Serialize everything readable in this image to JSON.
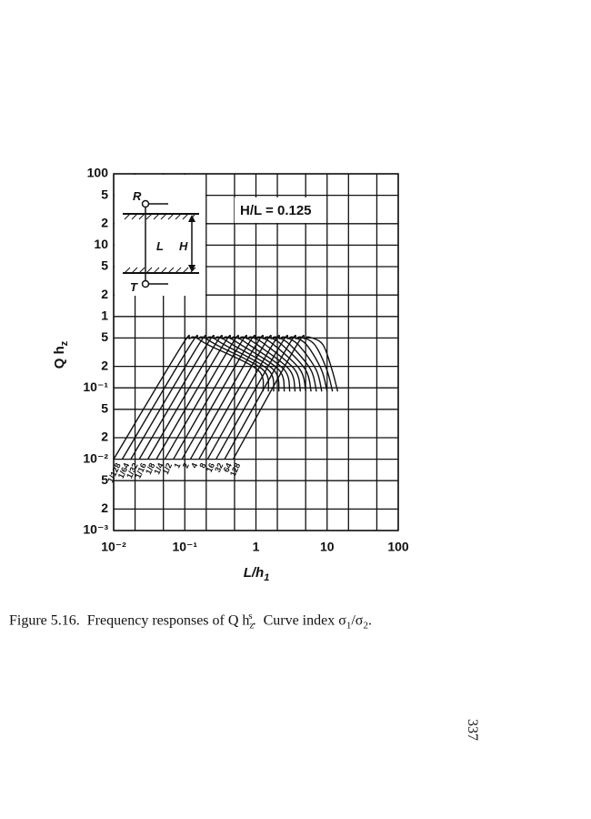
{
  "chart_data": {
    "type": "line",
    "x_label": {
      "main": "L/h",
      "sub": "1"
    },
    "y_label": {
      "main": "Q h",
      "sub": "z"
    },
    "annotation": "H/L = 0.125",
    "inset": {
      "top": "R",
      "bottom": "T",
      "left": "L",
      "right": "H"
    },
    "xlog": true,
    "ylog": true,
    "grid": true,
    "line_color": "#111111",
    "xlim": [
      0.01,
      100
    ],
    "ylim": [
      0.001,
      100
    ],
    "xticks": [
      {
        "value": 0.01,
        "label": "10⁻²"
      },
      {
        "value": 0.1,
        "label": "10⁻¹"
      },
      1,
      10,
      100
    ],
    "xgrid": [
      0.02,
      0.05,
      0.2,
      0.5,
      2,
      5,
      20,
      50
    ],
    "yticks": [
      100,
      {
        "value": 50,
        "label": "5"
      },
      {
        "value": 20,
        "label": "2"
      },
      10,
      5,
      2,
      1,
      {
        "value": 0.5,
        "label": "5"
      },
      {
        "value": 0.2,
        "label": "2"
      },
      {
        "value": 0.1,
        "label": "10⁻¹"
      },
      {
        "value": 0.05,
        "label": "5"
      },
      {
        "value": 0.02,
        "label": "2"
      },
      {
        "value": 0.01,
        "label": "10⁻²"
      },
      {
        "value": 0.005,
        "label": "5"
      },
      {
        "value": 0.002,
        "label": "2"
      },
      {
        "value": 0.001,
        "label": "10⁻³"
      }
    ],
    "series": [
      {
        "name": "1/128",
        "x": [
          0.01,
          0.089,
          0.117,
          0.141,
          0.213,
          1.05,
          1.26
        ],
        "values": [
          0.01,
          0.38,
          0.49,
          0.51,
          0.4,
          0.18,
          0.089
        ]
      },
      {
        "name": "1/64",
        "x": [
          0.0132,
          0.116,
          0.153,
          0.184,
          0.279,
          1.25,
          1.5
        ],
        "values": [
          0.01,
          0.38,
          0.49,
          0.51,
          0.4,
          0.18,
          0.089
        ]
      },
      {
        "name": "1/32",
        "x": [
          0.0174,
          0.151,
          0.2,
          0.24,
          0.363,
          1.48,
          1.78
        ],
        "values": [
          0.01,
          0.38,
          0.49,
          0.51,
          0.4,
          0.18,
          0.089
        ]
      },
      {
        "name": "1/16",
        "x": [
          0.0229,
          0.197,
          0.26,
          0.313,
          0.474,
          1.76,
          2.11
        ],
        "values": [
          0.01,
          0.38,
          0.49,
          0.51,
          0.4,
          0.18,
          0.089
        ]
      },
      {
        "name": "1/8",
        "x": [
          0.0302,
          0.257,
          0.339,
          0.408,
          0.618,
          2.09,
          2.51
        ],
        "values": [
          0.01,
          0.38,
          0.49,
          0.51,
          0.4,
          0.18,
          0.089
        ]
      },
      {
        "name": "1/4",
        "x": [
          0.0398,
          0.336,
          0.443,
          0.532,
          0.805,
          2.49,
          2.99
        ],
        "values": [
          0.01,
          0.38,
          0.49,
          0.51,
          0.4,
          0.18,
          0.089
        ]
      },
      {
        "name": "1/2",
        "x": [
          0.0525,
          0.438,
          0.577,
          0.694,
          1.05,
          2.95,
          3.55
        ],
        "values": [
          0.01,
          0.38,
          0.49,
          0.51,
          0.4,
          0.18,
          0.089
        ]
      },
      {
        "name": "1",
        "x": [
          0.0692,
          0.571,
          0.753,
          0.905,
          1.37,
          3.51,
          4.22
        ],
        "values": [
          0.01,
          0.38,
          0.49,
          0.51,
          0.4,
          0.18,
          0.089
        ]
      },
      {
        "name": "2",
        "x": [
          0.0912,
          0.744,
          0.982,
          1.18,
          1.79,
          4.17,
          5.01
        ],
        "values": [
          0.01,
          0.38,
          0.49,
          0.51,
          0.4,
          0.18,
          0.089
        ]
      },
      {
        "name": "4",
        "x": [
          0.12,
          0.972,
          1.28,
          1.54,
          2.33,
          4.96,
          5.96
        ],
        "values": [
          0.01,
          0.38,
          0.49,
          0.51,
          0.4,
          0.18,
          0.089
        ]
      },
      {
        "name": "8",
        "x": [
          0.158,
          1.26,
          1.66,
          2.0,
          3.03,
          5.89,
          7.08
        ],
        "values": [
          0.01,
          0.38,
          0.49,
          0.51,
          0.4,
          0.18,
          0.089
        ]
      },
      {
        "name": "16",
        "x": [
          0.209,
          1.65,
          2.17,
          2.61,
          3.95,
          7.0,
          8.41
        ],
        "values": [
          0.01,
          0.38,
          0.49,
          0.51,
          0.4,
          0.18,
          0.089
        ]
      },
      {
        "name": "32",
        "x": [
          0.275,
          2.15,
          2.84,
          3.41,
          5.16,
          8.32,
          10.0
        ],
        "values": [
          0.01,
          0.38,
          0.49,
          0.51,
          0.4,
          0.18,
          0.089
        ]
      },
      {
        "name": "64",
        "x": [
          0.363,
          2.8,
          3.69,
          4.44,
          6.72,
          9.9,
          11.9
        ],
        "values": [
          0.01,
          0.38,
          0.49,
          0.51,
          0.4,
          0.18,
          0.089
        ]
      },
      {
        "name": "128",
        "x": [
          0.479,
          3.65,
          4.82,
          5.79,
          8.77,
          11.7,
          14.1
        ],
        "values": [
          0.01,
          0.38,
          0.49,
          0.51,
          0.4,
          0.18,
          0.089
        ]
      }
    ]
  },
  "caption": {
    "label": "Figure 5.16.",
    "text": "Frequency responses of Q h",
    "sub": "z",
    "sup": "s",
    "tail": ".  Curve index σ",
    "sub1": "1",
    "mid": "/σ",
    "sub2": "2",
    "end": "."
  },
  "page_number": "337"
}
